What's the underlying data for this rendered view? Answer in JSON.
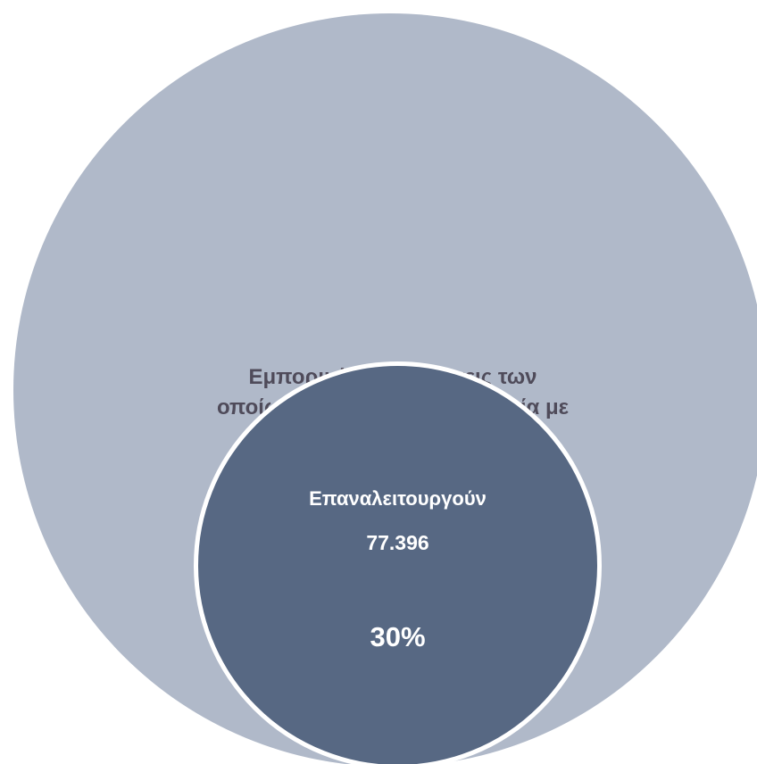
{
  "diagram": {
    "outer": {
      "label_line1": "Εμπορικές επιχειρήσεις των",
      "label_line2": "οποίων διακόπηκε η λειτουργία με",
      "color": "#b0b9c9"
    },
    "inner": {
      "title": "Επαναλειτουργούν",
      "value": "77.396",
      "percent": "30%",
      "color": "#576883"
    }
  }
}
